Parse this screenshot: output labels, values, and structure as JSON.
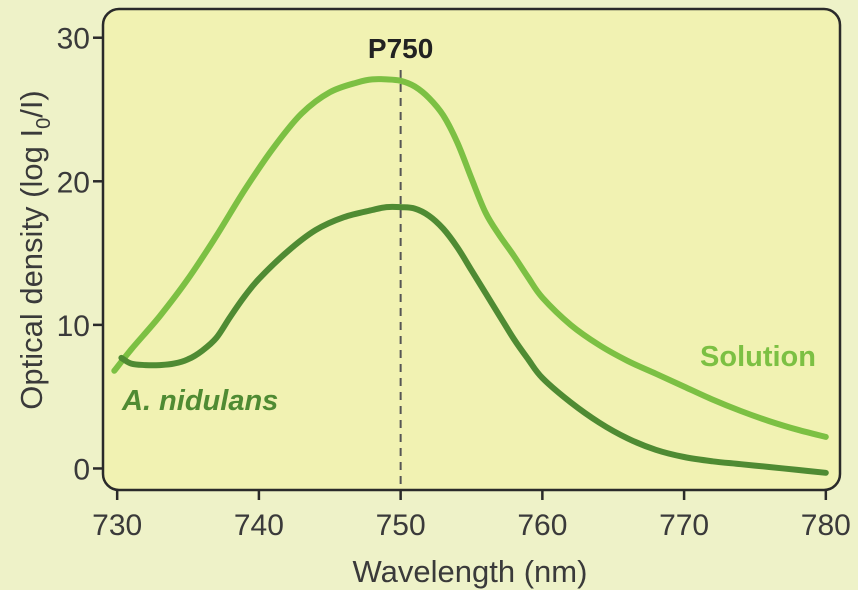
{
  "chart_data": {
    "type": "line",
    "title": "",
    "xlabel": "Wavelength (nm)",
    "ylabel": {
      "prefix": "Optical density (log I",
      "subscript": "0",
      "suffix": "/I)"
    },
    "xlim": [
      729,
      781
    ],
    "ylim": [
      -1.5,
      32
    ],
    "xticks": [
      730,
      740,
      750,
      760,
      770,
      780
    ],
    "yticks": [
      0,
      10,
      20,
      30
    ],
    "grid": false,
    "background_color": "#eef2c8",
    "plot_background_color": "#f1f2b2",
    "annotation": {
      "label": "P750",
      "x": 750,
      "style": "dashed vertical line",
      "color": "#555555"
    },
    "series": [
      {
        "name": "Solution",
        "color": "#7cc043",
        "label_italic": false,
        "x": [
          729.8,
          731,
          733,
          735,
          737,
          739,
          741,
          743,
          745,
          747,
          748,
          749,
          750,
          751,
          752,
          753,
          754,
          755,
          756,
          757,
          758,
          759,
          760,
          762,
          764,
          766,
          768,
          770,
          772,
          774,
          776,
          778,
          780
        ],
        "y": [
          6.8,
          8.3,
          10.6,
          13.2,
          16.2,
          19.4,
          22.3,
          24.7,
          26.2,
          26.9,
          27.1,
          27.1,
          27.0,
          26.6,
          25.8,
          24.6,
          22.7,
          20.2,
          17.8,
          16.2,
          14.8,
          13.3,
          11.9,
          10.0,
          8.6,
          7.5,
          6.6,
          5.7,
          4.8,
          4.0,
          3.3,
          2.7,
          2.2
        ]
      },
      {
        "name": "A. nidulans",
        "color": "#4f8b33",
        "label_italic": true,
        "x": [
          730.3,
          731,
          732,
          733,
          734,
          735,
          736,
          737,
          738,
          739,
          740,
          742,
          744,
          746,
          748,
          749,
          750,
          751,
          752,
          753,
          754,
          755,
          756,
          757,
          758,
          759,
          760,
          762,
          764,
          766,
          768,
          770,
          772,
          774,
          776,
          778,
          780
        ],
        "y": [
          7.7,
          7.3,
          7.2,
          7.2,
          7.3,
          7.6,
          8.2,
          9.1,
          10.6,
          12.0,
          13.2,
          15.1,
          16.6,
          17.5,
          18.0,
          18.2,
          18.2,
          18.1,
          17.6,
          16.7,
          15.4,
          13.8,
          12.2,
          10.6,
          9.0,
          7.6,
          6.3,
          4.6,
          3.2,
          2.1,
          1.3,
          0.8,
          0.5,
          0.3,
          0.1,
          -0.1,
          -0.3
        ]
      }
    ]
  }
}
